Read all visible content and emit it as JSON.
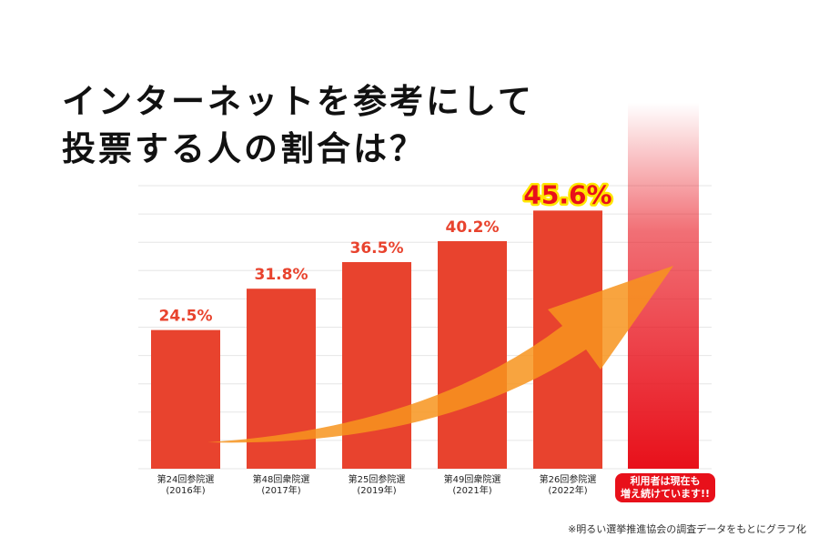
{
  "title": {
    "line1": "インターネットを参考にして",
    "line2": "投票する人の割合は？"
  },
  "chart_data": {
    "type": "bar",
    "categories": [
      {
        "line1": "第24回参院選",
        "line2": "(2016年)"
      },
      {
        "line1": "第48回衆院選",
        "line2": "(2017年)"
      },
      {
        "line1": "第25回参院選",
        "line2": "(2019年)"
      },
      {
        "line1": "第49回衆院選",
        "line2": "(2021年)"
      },
      {
        "line1": "第26回参院選",
        "line2": "(2022年)"
      }
    ],
    "values": [
      24.5,
      31.8,
      36.5,
      40.2,
      45.6
    ],
    "value_labels": [
      "24.5%",
      "31.8%",
      "36.5%",
      "40.2%",
      "45.6%"
    ],
    "future_label": {
      "line1": "利用者は現在も",
      "line2": "増え続けています!!"
    },
    "ylim": [
      0,
      50
    ],
    "grid": true,
    "trend_arrow": true
  },
  "footnote": "※明るい選挙推進協会の調査データをもとにグラフ化",
  "colors": {
    "bar": "#e8432e",
    "label": "#e8432e",
    "highlight_label": "#e8101a",
    "highlight_outline": "#ffe600",
    "arrow": "#f7941d",
    "future_bar": "#e8101a"
  }
}
